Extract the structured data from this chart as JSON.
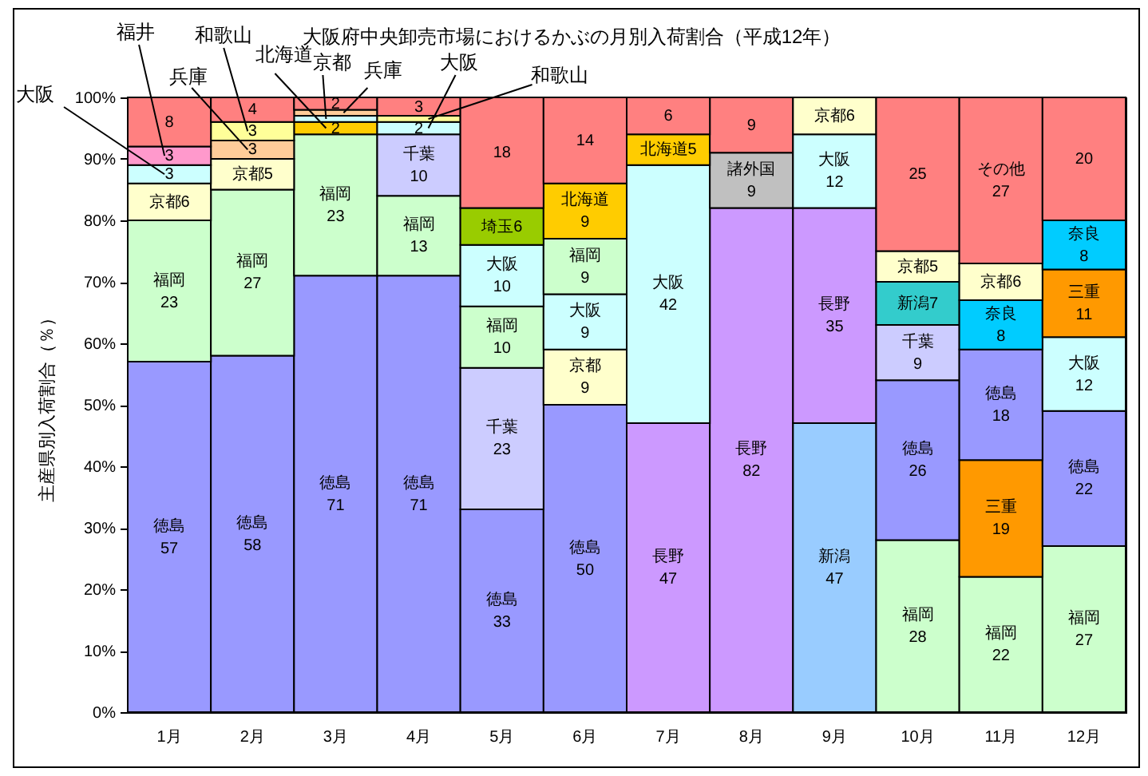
{
  "chart_data": {
    "type": "bar",
    "title": "大阪府中央卸売市場におけるかぶの月別入荷割合（平成12年）",
    "ylabel": "主産県別入荷割合（％）",
    "categories": [
      "1月",
      "2月",
      "3月",
      "4月",
      "5月",
      "6月",
      "7月",
      "8月",
      "9月",
      "10月",
      "11月",
      "12月"
    ],
    "stacked": true,
    "ylim": [
      0,
      100
    ],
    "yticks": [
      {
        "value": 0,
        "label": "0%"
      },
      {
        "value": 10,
        "label": "10%"
      },
      {
        "value": 20,
        "label": "20%"
      },
      {
        "value": 30,
        "label": "30%"
      },
      {
        "value": 40,
        "label": "40%"
      },
      {
        "value": 50,
        "label": "50%"
      },
      {
        "value": 60,
        "label": "60%"
      },
      {
        "value": 70,
        "label": "70%"
      },
      {
        "value": 80,
        "label": "80%"
      },
      {
        "value": 90,
        "label": "90%"
      },
      {
        "value": 100,
        "label": "100%"
      }
    ],
    "series": [
      {
        "values": [
          57,
          58,
          71,
          71,
          33,
          50,
          47,
          82,
          47,
          28,
          22,
          27
        ],
        "colors": [
          "#9999ff",
          "#9999ff",
          "#9999ff",
          "#9999ff",
          "#9999ff",
          "#9999ff",
          "#cc99ff",
          "#cc99ff",
          "#99ccff",
          "#ccffcc",
          "#ccffcc",
          "#ccffcc"
        ],
        "value_labels": [
          "徳島\n57",
          "徳島\n58",
          "徳島\n71",
          "徳島\n71",
          "徳島\n33",
          "徳島\n50",
          "長野\n47",
          "長野\n82",
          "新潟\n47",
          "福岡\n28",
          "福岡\n22",
          "福岡\n27"
        ]
      },
      {
        "values": [
          23,
          27,
          23,
          13,
          23,
          9,
          42,
          9,
          35,
          26,
          19,
          22
        ],
        "colors": [
          "#ccffcc",
          "#ccffcc",
          "#ccffcc",
          "#ccffcc",
          "#ccccff",
          "#ffffcc",
          "#ccffff",
          "#c0c0c0",
          "#cc99ff",
          "#9999ff",
          "#ff9900",
          "#9999ff"
        ],
        "value_labels": [
          "福岡\n23",
          "福岡\n27",
          "福岡\n23",
          "福岡\n13",
          "千葉\n23",
          "京都\n9",
          "大阪\n42",
          "諸外国\n9",
          "長野\n35",
          "徳島\n26",
          "三重\n19",
          "徳島\n22"
        ]
      },
      {
        "values": [
          6,
          5,
          2,
          10,
          10,
          9,
          5,
          9,
          12,
          9,
          18,
          12
        ],
        "colors": [
          "#ffffcc",
          "#ffffcc",
          "#ffcc00",
          "#ccccff",
          "#ccffcc",
          "#ccffff",
          "#ffcc00",
          "#ff8080",
          "#ccffff",
          "#ccccff",
          "#9999ff",
          "#ccffff"
        ],
        "value_labels": [
          "京都6",
          "京都5",
          "2",
          "千葉\n10",
          "福岡\n10",
          "大阪\n9",
          "北海道5",
          "9",
          "大阪\n12",
          "千葉\n9",
          "徳島\n18",
          "大阪\n12"
        ]
      },
      {
        "values": [
          3,
          3,
          1,
          2,
          10,
          9,
          6,
          null,
          6,
          7,
          8,
          11
        ],
        "colors": [
          "#ccffff",
          "#ffcc99",
          "#ccffff",
          "#ccffff",
          "#ccffff",
          "#ccffcc",
          "#ff8080",
          null,
          "#ffffcc",
          "#33cccc",
          "#00ccff",
          "#ff9900"
        ],
        "value_labels": [
          "3",
          "3",
          null,
          "2",
          "大阪\n10",
          "福岡\n9",
          "6",
          null,
          "京都6",
          "新潟7",
          "奈良\n8",
          "三重\n11"
        ]
      },
      {
        "values": [
          3,
          3,
          1,
          1,
          6,
          9,
          null,
          null,
          null,
          5,
          6,
          8
        ],
        "colors": [
          "#ff99cc",
          "#ffff99",
          "#ffcc99",
          "#ffff99",
          "#99cc00",
          "#ffcc00",
          null,
          null,
          null,
          "#ffffcc",
          "#ffffcc",
          "#00ccff"
        ],
        "value_labels": [
          "3",
          "3",
          null,
          null,
          "埼玉6",
          "北海道\n9",
          null,
          null,
          null,
          "京都5",
          "京都6",
          "奈良\n8"
        ]
      },
      {
        "values": [
          8,
          4,
          2,
          3,
          18,
          14,
          null,
          null,
          null,
          25,
          27,
          20
        ],
        "colors": [
          "#ff8080",
          "#ff8080",
          "#ff8080",
          "#ff8080",
          "#ff8080",
          "#ff8080",
          null,
          null,
          null,
          "#ff8080",
          "#ff8080",
          "#ff8080"
        ],
        "value_labels": [
          "8",
          "4",
          "2",
          "3",
          "18",
          "14",
          null,
          null,
          null,
          "25",
          "その他\n27",
          "20"
        ]
      }
    ],
    "annotations": [
      {
        "text": "大阪",
        "x": "1月",
        "y": 87.5
      },
      {
        "text": "福井",
        "x": "1月",
        "y": 90.5
      },
      {
        "text": "兵庫",
        "x": "2月",
        "y": 91.5
      },
      {
        "text": "和歌山",
        "x": "2月",
        "y": 94.5
      },
      {
        "text": "北海道",
        "x": "3月",
        "y": 95
      },
      {
        "text": "京都",
        "x": "3月",
        "y": 96.5
      },
      {
        "text": "兵庫",
        "x": "3月",
        "y": 97.5
      },
      {
        "text": "大阪",
        "x": "4月",
        "y": 95
      },
      {
        "text": "和歌山",
        "x": "4月",
        "y": 96.5
      }
    ]
  }
}
